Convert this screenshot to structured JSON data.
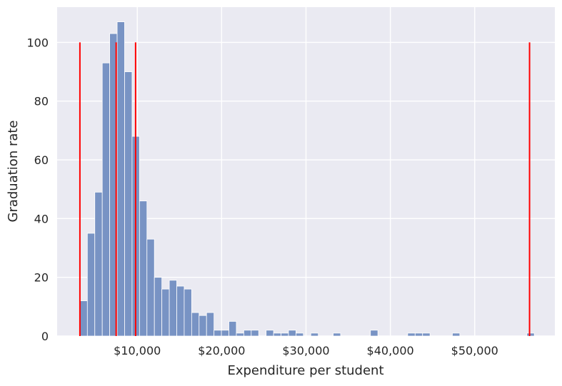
{
  "chart_data": {
    "type": "bar",
    "title": "",
    "xlabel": "Expenditure per student",
    "ylabel": "Graduation rate",
    "xlim": [
      500,
      59500
    ],
    "ylim": [
      0,
      112
    ],
    "x_ticks": [
      10000,
      20000,
      30000,
      40000,
      50000
    ],
    "x_tick_labels": [
      "$10,000",
      "$20,000",
      "$30,000",
      "$40,000",
      "$50,000"
    ],
    "y_ticks": [
      0,
      20,
      40,
      60,
      80,
      100
    ],
    "y_tick_labels": [
      "0",
      "20",
      "40",
      "60",
      "80",
      "100"
    ],
    "grid": true,
    "bar_color": "#7893c4",
    "bar_edge_color": "#ffffff",
    "background_color": "#eaeaf2",
    "grid_color": "#ffffff",
    "line_color": "#ff0000",
    "bins": {
      "start": 3200,
      "width": 883,
      "counts": [
        12,
        35,
        49,
        93,
        103,
        107,
        90,
        68,
        46,
        33,
        20,
        16,
        19,
        17,
        16,
        8,
        7,
        8,
        2,
        2,
        5,
        1,
        2,
        2,
        0,
        2,
        1,
        1,
        2,
        1,
        0,
        1,
        0,
        0,
        1,
        0,
        0,
        0,
        0,
        2,
        0,
        0,
        0,
        0,
        1,
        1,
        1,
        0,
        0,
        0,
        1,
        0,
        0,
        0,
        0,
        0,
        0,
        0,
        0,
        0,
        1
      ]
    },
    "vertical_lines": [
      {
        "x": 3200,
        "y_max": 100
      },
      {
        "x": 7500,
        "y_max": 100
      },
      {
        "x": 9800,
        "y_max": 100
      },
      {
        "x": 56500,
        "y_max": 100
      }
    ]
  }
}
